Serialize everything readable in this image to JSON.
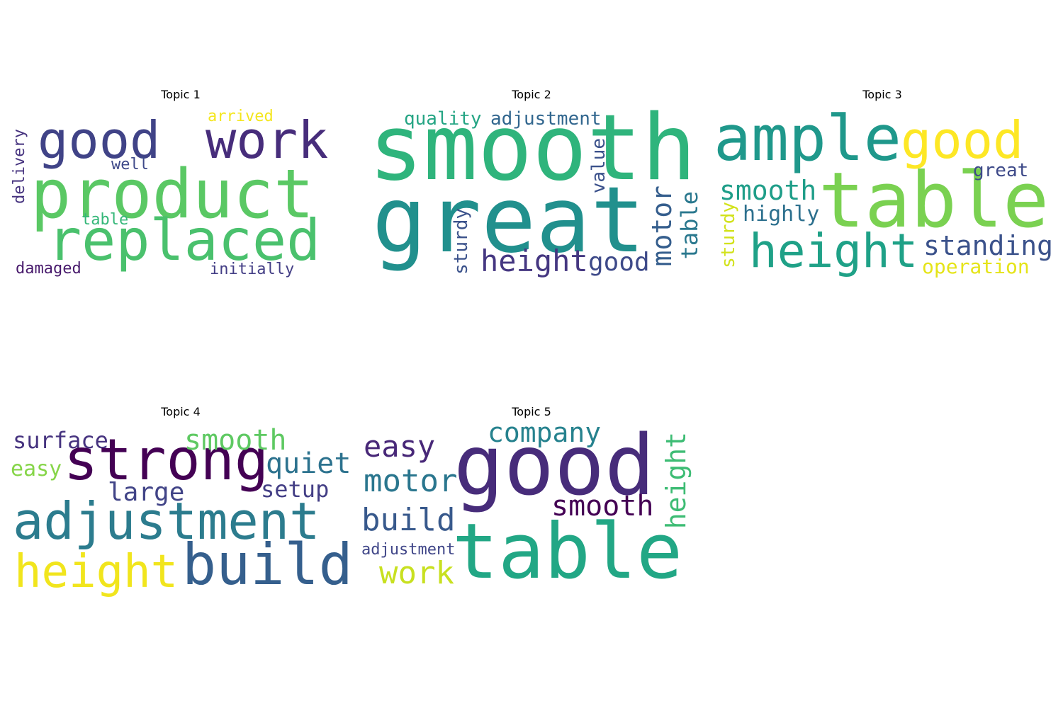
{
  "topics": [
    {
      "title": "Topic 1",
      "words": [
        {
          "text": "product",
          "color": "#5ac864"
        },
        {
          "text": "replaced",
          "color": "#4ac16d"
        },
        {
          "text": "good",
          "color": "#404387"
        },
        {
          "text": "work",
          "color": "#472d7b"
        },
        {
          "text": "arrived",
          "color": "#f4e61e"
        },
        {
          "text": "well",
          "color": "#3e4989"
        },
        {
          "text": "delivery",
          "color": "#46337f"
        },
        {
          "text": "table",
          "color": "#35b779"
        },
        {
          "text": "damaged",
          "color": "#481a6c"
        },
        {
          "text": "initially",
          "color": "#433e85"
        }
      ]
    },
    {
      "title": "Topic 2",
      "words": [
        {
          "text": "smooth",
          "color": "#2fb47c"
        },
        {
          "text": "great",
          "color": "#21908d"
        },
        {
          "text": "quality",
          "color": "#25a584"
        },
        {
          "text": "adjustment",
          "color": "#31668e"
        },
        {
          "text": "value",
          "color": "#3b518b"
        },
        {
          "text": "height",
          "color": "#453781"
        },
        {
          "text": "good",
          "color": "#3e4a89"
        },
        {
          "text": "motor",
          "color": "#355e8d"
        },
        {
          "text": "table",
          "color": "#2a788e"
        },
        {
          "text": "sturdy",
          "color": "#3b528b"
        }
      ]
    },
    {
      "title": "Topic 3",
      "words": [
        {
          "text": "ample",
          "color": "#1f988b"
        },
        {
          "text": "good",
          "color": "#fde725"
        },
        {
          "text": "table",
          "color": "#7ad151"
        },
        {
          "text": "great",
          "color": "#3e4a89"
        },
        {
          "text": "smooth",
          "color": "#1f9e89"
        },
        {
          "text": "highly",
          "color": "#2d708e"
        },
        {
          "text": "sturdy",
          "color": "#d2e21b"
        },
        {
          "text": "height",
          "color": "#1fa187"
        },
        {
          "text": "standing",
          "color": "#3b528b"
        },
        {
          "text": "operation",
          "color": "#e5e419"
        }
      ]
    },
    {
      "title": "Topic 4",
      "words": [
        {
          "text": "surface",
          "color": "#46337f"
        },
        {
          "text": "strong",
          "color": "#440154"
        },
        {
          "text": "smooth",
          "color": "#5ec962"
        },
        {
          "text": "easy",
          "color": "#86d549"
        },
        {
          "text": "quiet",
          "color": "#2c728e"
        },
        {
          "text": "large",
          "color": "#414487"
        },
        {
          "text": "setup",
          "color": "#433e85"
        },
        {
          "text": "adjustment",
          "color": "#2c7c8e"
        },
        {
          "text": "height",
          "color": "#f1e51d"
        },
        {
          "text": "build",
          "color": "#355f8d"
        }
      ]
    },
    {
      "title": "Topic 5",
      "words": [
        {
          "text": "company",
          "color": "#26828e"
        },
        {
          "text": "easy",
          "color": "#482878"
        },
        {
          "text": "good",
          "color": "#472c7a"
        },
        {
          "text": "height",
          "color": "#3dbc74"
        },
        {
          "text": "motor",
          "color": "#2a768e"
        },
        {
          "text": "smooth",
          "color": "#440154"
        },
        {
          "text": "build",
          "color": "#38598c"
        },
        {
          "text": "adjustment",
          "color": "#404688"
        },
        {
          "text": "table",
          "color": "#22a785"
        },
        {
          "text": "work",
          "color": "#c8e020"
        }
      ]
    }
  ]
}
